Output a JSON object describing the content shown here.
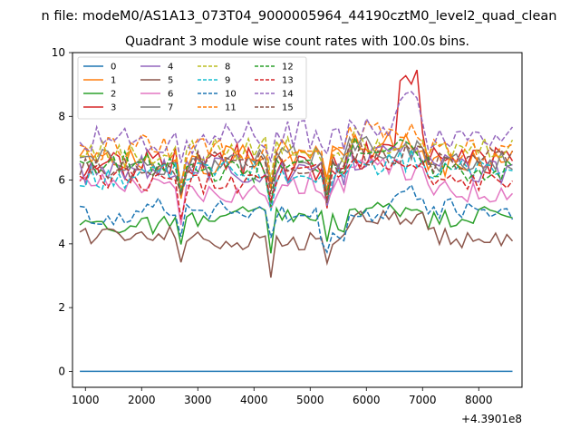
{
  "suptitle": "n file: modeM0/AS1A13_073T04_9000005964_44190cztM0_level2_quad_clean",
  "chart_data": {
    "type": "line",
    "title": "Quadrant 3 module wise count rates with 100.0s bins.",
    "xlabel": "",
    "ylabel": "",
    "x_offset_label": "+4.3901e8",
    "xlim": [
      770,
      8770
    ],
    "ylim": [
      -0.5,
      10
    ],
    "x_ticks": [
      1000,
      2000,
      3000,
      4000,
      5000,
      6000,
      7000,
      8000
    ],
    "x_tick_labels": [
      "1000",
      "2000",
      "3000",
      "4000",
      "5000",
      "6000",
      "7000",
      "8000"
    ],
    "y_ticks": [
      0,
      2,
      4,
      6,
      8,
      10
    ],
    "y_tick_labels": [
      "0",
      "2",
      "4",
      "6",
      "8",
      "10"
    ],
    "x": {
      "start": 900,
      "stop": 8600,
      "step": 100
    },
    "legend_location": "upper-left",
    "series": [
      {
        "name": "0",
        "color": "#1f77b4",
        "dash": "solid",
        "base": 0.0,
        "amp": 0.0,
        "seed": 0
      },
      {
        "name": "1",
        "color": "#ff7f0e",
        "dash": "solid",
        "base": 6.7,
        "amp": 0.45,
        "seed": 1
      },
      {
        "name": "2",
        "color": "#2ca02c",
        "dash": "solid",
        "base": 4.75,
        "amp": 0.3,
        "seed": 2
      },
      {
        "name": "3",
        "color": "#d62728",
        "dash": "solid",
        "base": 6.5,
        "amp": 0.5,
        "seed": 3
      },
      {
        "name": "4",
        "color": "#9467bd",
        "dash": "solid",
        "base": 6.3,
        "amp": 0.4,
        "seed": 4
      },
      {
        "name": "5",
        "color": "#8c564b",
        "dash": "solid",
        "base": 4.2,
        "amp": 0.3,
        "seed": 5
      },
      {
        "name": "6",
        "color": "#e377c2",
        "dash": "solid",
        "base": 5.8,
        "amp": 0.35,
        "seed": 6
      },
      {
        "name": "7",
        "color": "#7f7f7f",
        "dash": "solid",
        "base": 6.6,
        "amp": 0.35,
        "seed": 7
      },
      {
        "name": "8",
        "color": "#bcbd22",
        "dash": "dashed",
        "base": 6.9,
        "amp": 0.4,
        "seed": 8
      },
      {
        "name": "9",
        "color": "#17becf",
        "dash": "dashed",
        "base": 6.2,
        "amp": 0.35,
        "seed": 9
      },
      {
        "name": "10",
        "color": "#1f77b4",
        "dash": "dashed",
        "base": 5.0,
        "amp": 0.35,
        "seed": 10
      },
      {
        "name": "11",
        "color": "#ff7f0e",
        "dash": "dashed",
        "base": 6.9,
        "amp": 0.4,
        "seed": 11
      },
      {
        "name": "12",
        "color": "#2ca02c",
        "dash": "dashed",
        "base": 6.4,
        "amp": 0.35,
        "seed": 12
      },
      {
        "name": "13",
        "color": "#d62728",
        "dash": "dashed",
        "base": 6.0,
        "amp": 0.35,
        "seed": 13
      },
      {
        "name": "14",
        "color": "#9467bd",
        "dash": "dashed",
        "base": 7.3,
        "amp": 0.45,
        "seed": 14
      },
      {
        "name": "15",
        "color": "#8c564b",
        "dash": "dashed",
        "base": 6.5,
        "amp": 0.35,
        "seed": 15
      }
    ]
  }
}
